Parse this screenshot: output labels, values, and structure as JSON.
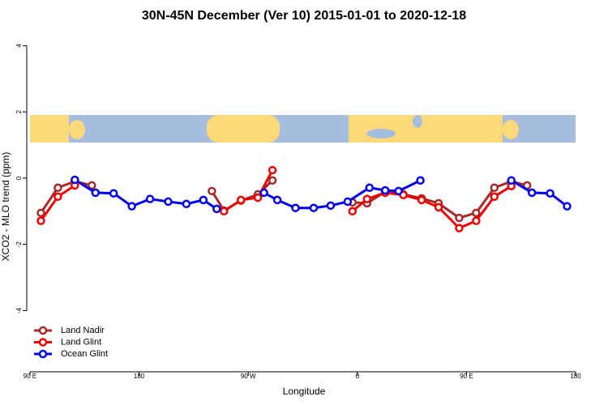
{
  "chart_data": {
    "type": "line",
    "title": "30N-45N December (Ver 10)   2015-01-01 to 2020-12-18",
    "x_label": "Longitude",
    "y_label": "XCO2 - MLO trend (ppm)",
    "xlim": [
      90,
      540
    ],
    "ylim": [
      -5.75,
      4.4
    ],
    "xticks": [
      {
        "value": 90,
        "label": "90 E"
      },
      180,
      {
        "value": 270,
        "label": "90 W"
      },
      {
        "value": 360,
        "label": "0"
      },
      {
        "value": 450,
        "label": "90 E"
      },
      {
        "value": 540,
        "label": "180"
      }
    ],
    "yticks": [
      -4,
      -2,
      0,
      2,
      4
    ],
    "legend": "bottom-left",
    "series": [
      {
        "name": "Land Nadir",
        "color": "#a52a2a",
        "x": [
          99,
          113,
          127,
          141,
          null,
          240,
          250,
          264,
          278,
          290,
          null,
          356,
          368,
          383,
          398,
          413,
          427,
          444,
          458,
          473,
          487,
          500
        ],
        "values": [
          -1.05,
          -0.29,
          -0.1,
          -0.22,
          null,
          -0.39,
          -0.98,
          -0.68,
          -0.49,
          -0.07,
          null,
          -0.73,
          -0.76,
          -0.41,
          -0.49,
          -0.61,
          -0.76,
          -1.2,
          -1.05,
          -0.29,
          -0.1,
          -0.22
        ]
      },
      {
        "name": "Land Glint",
        "color": "#ee0000",
        "x": [
          99,
          113,
          127,
          null,
          250,
          264,
          278,
          290,
          null,
          356,
          368,
          383,
          398,
          413,
          427,
          444,
          458,
          473,
          487
        ],
        "values": [
          -1.29,
          -0.56,
          -0.22,
          null,
          -1.0,
          -0.66,
          -0.59,
          0.24,
          null,
          -1.0,
          -0.63,
          -0.44,
          -0.51,
          -0.66,
          -0.88,
          -1.51,
          -1.29,
          -0.56,
          -0.24
        ]
      },
      {
        "name": "Ocean Glint",
        "color": "#0000ee",
        "x": [
          127,
          144,
          159,
          174,
          189,
          204,
          219,
          233,
          244,
          null,
          283,
          294,
          309,
          324,
          338,
          352,
          370,
          383,
          394,
          412,
          null,
          487,
          504,
          519,
          533
        ],
        "values": [
          -0.05,
          -0.44,
          -0.46,
          -0.85,
          -0.63,
          -0.71,
          -0.78,
          -0.66,
          -0.93,
          null,
          -0.44,
          -0.66,
          -0.9,
          -0.9,
          -0.83,
          -0.71,
          -0.29,
          -0.37,
          -0.39,
          -0.07,
          null,
          -0.07,
          -0.44,
          -0.46,
          -0.85
        ]
      }
    ]
  }
}
